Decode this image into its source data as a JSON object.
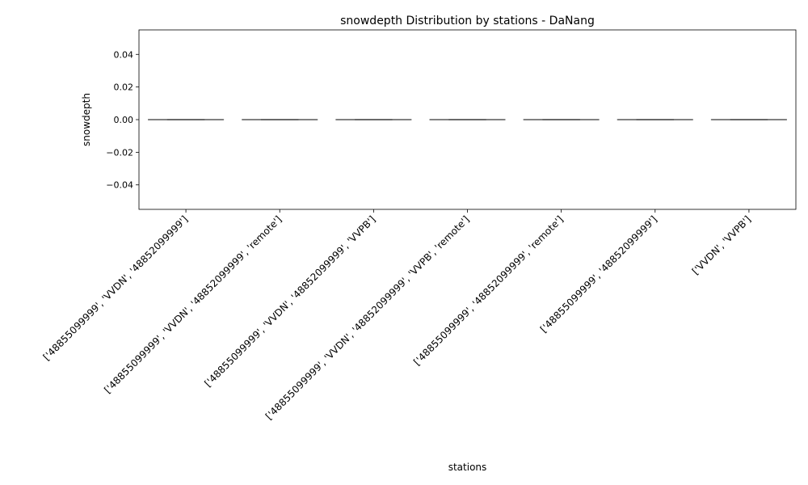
{
  "chart_data": {
    "type": "box",
    "title": "snowdepth Distribution by stations - DaNang",
    "xlabel": "stations",
    "ylabel": "snowdepth",
    "ylim": [
      -0.055,
      0.055
    ],
    "yticks": [
      -0.04,
      -0.02,
      0.0,
      0.02,
      0.04
    ],
    "ytick_labels": [
      "−0.04",
      "−0.02",
      "0.00",
      "0.02",
      "0.04"
    ],
    "grid": false,
    "box_color": "#4d4d4d",
    "categories": [
      "['48855099999', 'VVDN', '48852099999']",
      "['48855099999', 'VVDN', '48852099999', 'remote']",
      "['48855099999', 'VVDN', '48852099999', 'VVPB']",
      "['48855099999', 'VVDN', '48852099999', 'VVPB', 'remote']",
      "['48855099999', '48852099999', 'remote']",
      "['48855099999', '48852099999']",
      "['VVDN', 'VVPB']"
    ],
    "boxes": [
      {
        "min": 0,
        "q1": 0,
        "median": 0,
        "q3": 0,
        "max": 0
      },
      {
        "min": 0,
        "q1": 0,
        "median": 0,
        "q3": 0,
        "max": 0
      },
      {
        "min": 0,
        "q1": 0,
        "median": 0,
        "q3": 0,
        "max": 0
      },
      {
        "min": 0,
        "q1": 0,
        "median": 0,
        "q3": 0,
        "max": 0
      },
      {
        "min": 0,
        "q1": 0,
        "median": 0,
        "q3": 0,
        "max": 0
      },
      {
        "min": 0,
        "q1": 0,
        "median": 0,
        "q3": 0,
        "max": 0
      },
      {
        "min": 0,
        "q1": 0,
        "median": 0,
        "q3": 0,
        "max": 0
      }
    ]
  }
}
